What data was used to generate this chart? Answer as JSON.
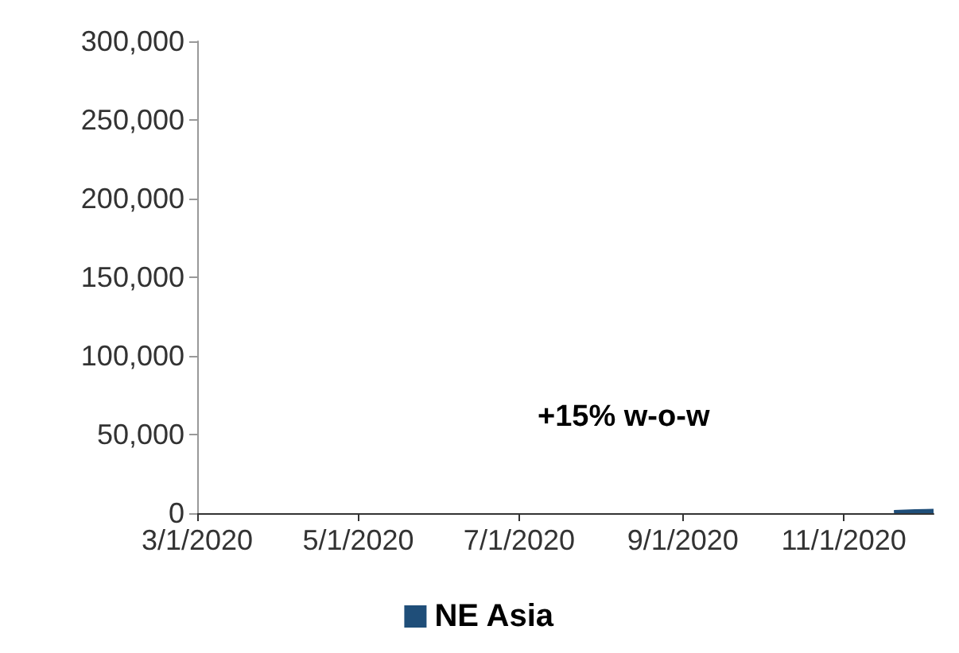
{
  "chart_data": {
    "type": "area",
    "x": [
      "2020-11-20",
      "2020-11-24",
      "2020-11-28",
      "2020-12-02",
      "2020-12-05"
    ],
    "series": [
      {
        "name": "NE Asia",
        "color": "#1f4e79",
        "values": [
          1500,
          1800,
          2000,
          2200,
          2300
        ]
      }
    ],
    "xlim": [
      "2020-03-01",
      "2020-12-05"
    ],
    "xticks": [
      {
        "value": "2020-03-01",
        "label": "3/1/2020"
      },
      {
        "value": "2020-05-01",
        "label": "5/1/2020"
      },
      {
        "value": "2020-07-01",
        "label": "7/1/2020"
      },
      {
        "value": "2020-09-01",
        "label": "9/1/2020"
      },
      {
        "value": "2020-11-01",
        "label": "11/1/2020"
      }
    ],
    "ylim": [
      0,
      300000
    ],
    "yticks": [
      {
        "value": 0,
        "label": "0"
      },
      {
        "value": 50000,
        "label": "50,000"
      },
      {
        "value": 100000,
        "label": "100,000"
      },
      {
        "value": 150000,
        "label": "150,000"
      },
      {
        "value": 200000,
        "label": "200,000"
      },
      {
        "value": 250000,
        "label": "250,000"
      },
      {
        "value": 300000,
        "label": "300,000"
      }
    ],
    "annotations": [
      "+15% w-o-w"
    ],
    "legend": "bottom",
    "grid": false
  }
}
